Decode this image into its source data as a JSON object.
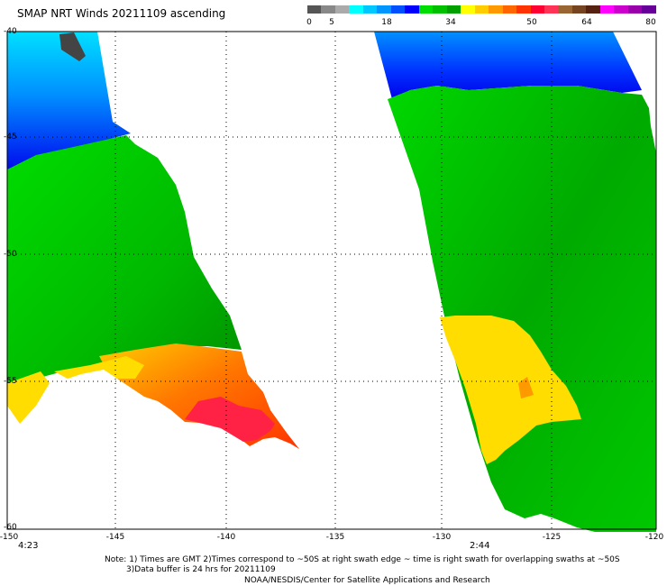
{
  "title": "SMAP NRT Winds 20211109 ascending",
  "colorbar": {
    "labels": [
      "0",
      "5",
      "18",
      "34",
      "50",
      "64",
      "80"
    ],
    "colors": [
      "#555555",
      "#888888",
      "#aaaaaa",
      "#00ffff",
      "#00c8ff",
      "#0096ff",
      "#0050ff",
      "#0000ff",
      "#00dd00",
      "#00c000",
      "#00a000",
      "#ffff00",
      "#ffcc00",
      "#ff9900",
      "#ff6600",
      "#ff3300",
      "#ff0033",
      "#ff3355",
      "#996633",
      "#774422",
      "#552211",
      "#ff00ff",
      "#cc00cc",
      "#9900aa",
      "#660099"
    ]
  },
  "axes": {
    "x_ticks": [
      "-150",
      "-145",
      "-140",
      "-135",
      "-130",
      "-125",
      "-120"
    ],
    "y_ticks": [
      "-40",
      "-45",
      "-50",
      "-55",
      "-60"
    ]
  },
  "swath_times": [
    "4:23",
    "2:44"
  ],
  "notes": [
    "Note: 1) Times are GMT 2)Times correspond to ~50S at right swath edge ~ time is right swath for overlapping swaths at ~50S",
    "3)Data buffer is 24 hrs for 20211109",
    "NOAA/NESDIS/Center for Satellite Applications and Research"
  ],
  "map_colors": {
    "light_blue": "#00ccff",
    "blue": "#0040ff",
    "dark_blue": "#0010ee",
    "green": "#00cc00",
    "dark_green": "#009a00",
    "yellow": "#ffdd00",
    "orange": "#ff9900",
    "red_orange": "#ff4400",
    "red": "#ff2244",
    "calm_gray": "#444444"
  }
}
